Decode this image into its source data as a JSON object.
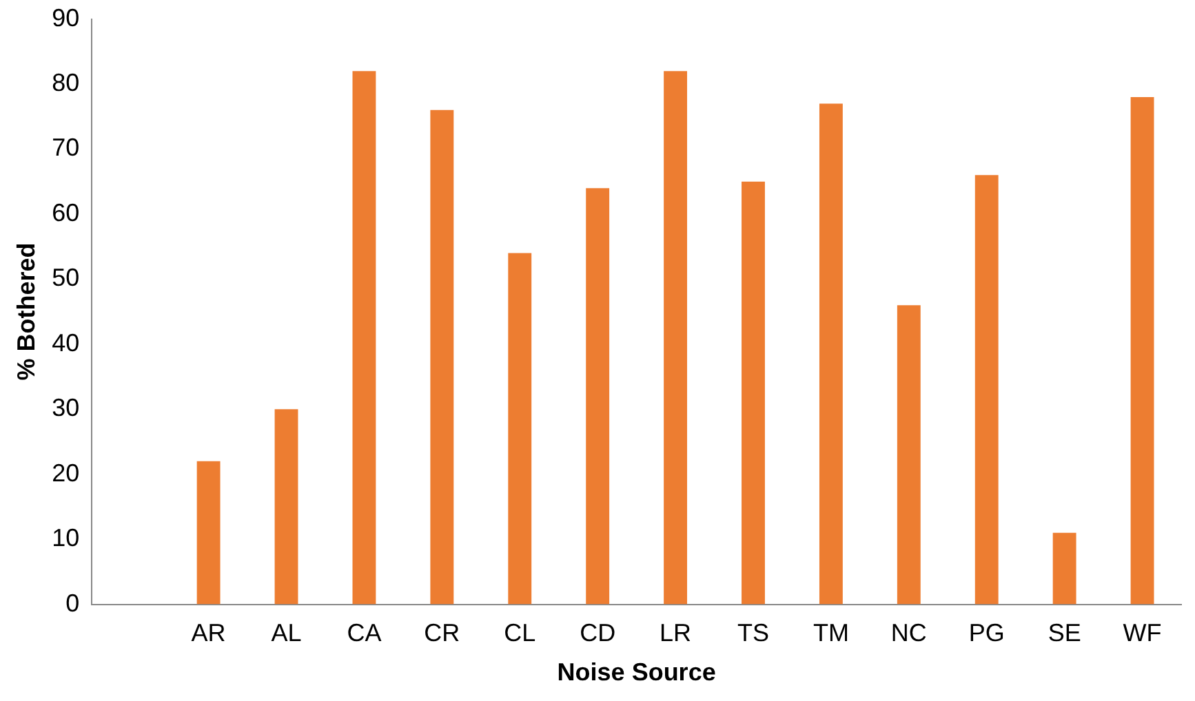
{
  "chart_data": {
    "type": "bar",
    "xlabel": "Noise Source",
    "ylabel": "% Bothered",
    "categories": [
      null,
      "AR",
      "AL",
      "CA",
      "CR",
      "CL",
      "CD",
      "LR",
      "TS",
      "TM",
      "NC",
      "PG",
      "SE",
      "WF"
    ],
    "values": [
      null,
      22,
      30,
      82,
      76,
      54,
      64,
      82,
      65,
      77,
      46,
      66,
      11,
      78
    ],
    "color": "#ed7d31",
    "ylim": [
      0,
      90
    ],
    "yticks": [
      0,
      10,
      20,
      30,
      40,
      50,
      60,
      70,
      80,
      90
    ],
    "grid": false,
    "legend": false
  }
}
